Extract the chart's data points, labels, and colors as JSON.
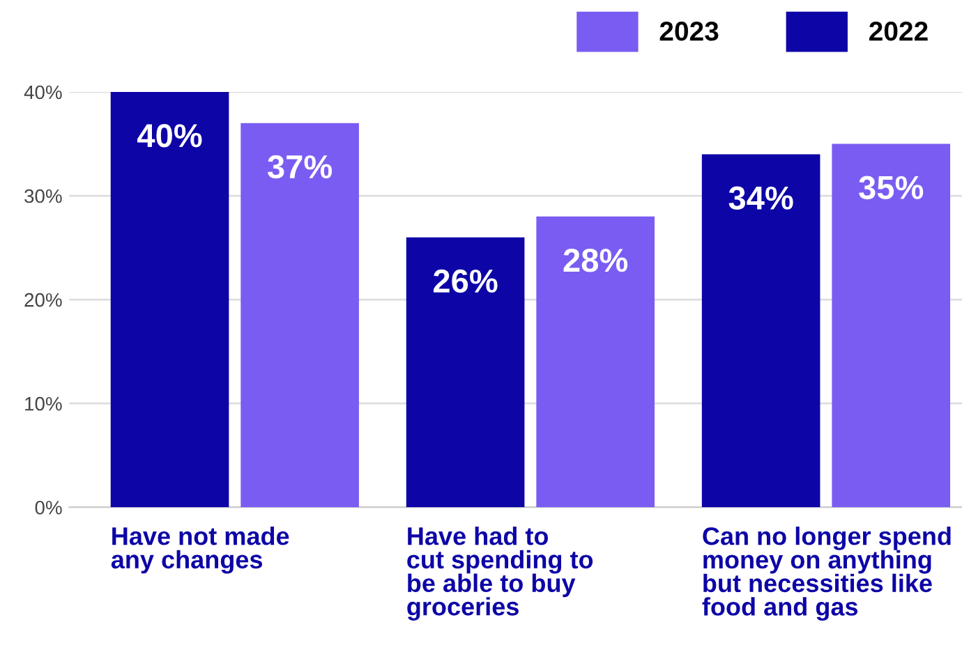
{
  "chart_data": {
    "type": "bar",
    "categories": [
      "Have not made\nany changes",
      "Have had to\ncut spending to\nbe able to buy\ngroceries",
      "Can no longer spend\nmoney on anything\nbut necessities like\nfood and gas"
    ],
    "series": [
      {
        "name": "2022",
        "color": "#0d05a6",
        "values": [
          40,
          26,
          34
        ]
      },
      {
        "name": "2023",
        "color": "#7a5cf2",
        "values": [
          37,
          28,
          35
        ]
      }
    ],
    "value_labels": [
      [
        "40%",
        "26%",
        "34%"
      ],
      [
        "37%",
        "28%",
        "35%"
      ]
    ],
    "ylim": [
      0,
      40
    ],
    "yticks": [
      {
        "value": 0,
        "label": "0%"
      },
      {
        "value": 10,
        "label": "10%"
      },
      {
        "value": 20,
        "label": "20%"
      },
      {
        "value": 30,
        "label": "30%"
      },
      {
        "value": 40,
        "label": "40%"
      }
    ],
    "grid": "y",
    "legend": "top right"
  }
}
